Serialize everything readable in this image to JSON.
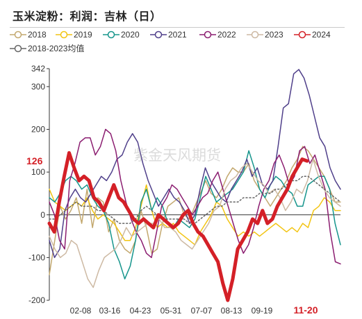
{
  "chart_data": {
    "type": "line",
    "title": "玉米淀粉：利润：吉林（日）",
    "ylim": [
      -200,
      342
    ],
    "y_ticks": [
      -200,
      -100,
      0,
      100,
      200,
      300,
      342
    ],
    "x_ticks": [
      "02-08",
      "03-16",
      "04-23",
      "05-31",
      "07-07",
      "08-13",
      "09-19",
      "11-20"
    ],
    "highlight_x_tick": "11-20",
    "highlight_y_label": "126",
    "grid": false,
    "legend_position": "top",
    "series": [
      {
        "name": "2018",
        "color": "#c3a86e",
        "width": 1.5,
        "dash": "",
        "values": [
          -140,
          -60,
          20,
          -10,
          10,
          40,
          -20,
          60,
          -30,
          40,
          30,
          -40,
          -10,
          -60,
          -80,
          -90,
          -60,
          10,
          -30,
          -90,
          -80,
          -20,
          20,
          30,
          40,
          0,
          -10,
          20,
          50,
          80,
          50,
          40,
          60,
          90,
          110,
          100,
          100,
          120,
          80,
          60,
          40,
          20,
          40,
          60,
          80,
          110,
          130,
          160,
          150,
          130,
          110,
          90,
          60,
          30,
          30
        ]
      },
      {
        "name": "2019",
        "color": "#f2c412",
        "width": 1.5,
        "dash": "",
        "values": [
          60,
          30,
          20,
          10,
          20,
          30,
          20,
          40,
          10,
          -10,
          0,
          -10,
          -20,
          -40,
          -60,
          -60,
          -30,
          20,
          70,
          10,
          -30,
          -20,
          -30,
          -20,
          -40,
          -50,
          -60,
          -70,
          -40,
          -20,
          0,
          30,
          20,
          -10,
          -30,
          -50,
          -40,
          -50,
          -40,
          -50,
          -40,
          -30,
          -20,
          -30,
          -40,
          -30,
          -40,
          -20,
          -30,
          10,
          20,
          40,
          30,
          10,
          10
        ]
      },
      {
        "name": "2020",
        "color": "#16958c",
        "width": 1.5,
        "dash": "",
        "values": [
          40,
          30,
          50,
          80,
          90,
          80,
          60,
          70,
          40,
          20,
          10,
          -20,
          -80,
          -110,
          -150,
          -120,
          -60,
          30,
          60,
          10,
          40,
          20,
          -20,
          -30,
          -10,
          -20,
          -30,
          -10,
          40,
          90,
          60,
          30,
          40,
          50,
          60,
          80,
          100,
          150,
          110,
          60,
          40,
          70,
          90,
          80,
          60,
          50,
          20,
          20,
          70,
          80,
          90,
          90,
          60,
          -20,
          -70
        ]
      },
      {
        "name": "2021",
        "color": "#4f3f8a",
        "width": 1.5,
        "dash": "",
        "values": [
          -60,
          -100,
          -80,
          10,
          40,
          60,
          40,
          30,
          50,
          70,
          90,
          80,
          100,
          130,
          140,
          170,
          190,
          170,
          120,
          80,
          50,
          20,
          40,
          60,
          40,
          30,
          10,
          -20,
          0,
          60,
          110,
          80,
          60,
          40,
          30,
          60,
          80,
          100,
          130,
          90,
          110,
          70,
          60,
          80,
          160,
          250,
          260,
          330,
          340,
          320,
          280,
          230,
          180,
          160,
          110,
          80,
          60
        ]
      },
      {
        "name": "2022",
        "color": "#8b1d70",
        "width": 1.5,
        "dash": "",
        "values": [
          30,
          0,
          -60,
          -80,
          80,
          120,
          170,
          180,
          180,
          140,
          160,
          200,
          190,
          150,
          80,
          30,
          -10,
          -40,
          -60,
          -90,
          -100,
          -40,
          20,
          40,
          70,
          60,
          40,
          20,
          0,
          20,
          40,
          50,
          80,
          100,
          60,
          20,
          -20,
          -60,
          -90,
          -70,
          -30,
          20,
          60,
          80,
          120,
          140,
          110,
          70,
          90,
          150,
          160,
          120,
          140,
          100,
          60,
          -40,
          -110,
          -115
        ]
      },
      {
        "name": "2023",
        "color": "#cdb9a3",
        "width": 1.5,
        "dash": "",
        "values": [
          -50,
          -80,
          -100,
          -90,
          -60,
          -70,
          -110,
          -150,
          -170,
          -130,
          -100,
          -90,
          -80,
          -60,
          -30,
          -50,
          -40,
          -30,
          -20,
          -20,
          -10,
          -30,
          -30,
          -40,
          -60,
          -70,
          -80,
          -60,
          -40,
          -20,
          10,
          20,
          60,
          80,
          90,
          110,
          120,
          100,
          80,
          70,
          50,
          60,
          40,
          10,
          30,
          60,
          50,
          80,
          130,
          90,
          60,
          40,
          30,
          20
        ]
      },
      {
        "name": "2024",
        "color": "#d42027",
        "width": 5,
        "dash": "",
        "values": [
          -20,
          -40,
          30,
          90,
          145,
          110,
          80,
          90,
          80,
          40,
          30,
          10,
          40,
          70,
          40,
          30,
          10,
          -10,
          -20,
          -10,
          -20,
          -30,
          0,
          -10,
          -20,
          -30,
          -20,
          0,
          10,
          -20,
          -40,
          -50,
          -70,
          -90,
          -110,
          -160,
          -200,
          -150,
          -80,
          -60,
          -40,
          -10,
          -20,
          10,
          -20,
          -10,
          20,
          40,
          60,
          90,
          110,
          130,
          126
        ]
      },
      {
        "name": "2018-2023均值",
        "color": "#666666",
        "width": 1.5,
        "dash": "2,3",
        "values": [
          -10,
          -10,
          0,
          10,
          20,
          30,
          20,
          20,
          20,
          10,
          10,
          0,
          -10,
          -20,
          -20,
          -20,
          -10,
          10,
          20,
          10,
          0,
          -10,
          -10,
          -10,
          -10,
          -10,
          -20,
          -20,
          -10,
          0,
          10,
          20,
          20,
          30,
          30,
          30,
          40,
          40,
          40,
          50,
          50,
          50,
          60,
          60,
          70,
          80,
          80,
          90,
          90,
          80,
          70,
          60,
          50,
          40,
          30
        ]
      }
    ]
  },
  "watermark": "紫金天风期货"
}
